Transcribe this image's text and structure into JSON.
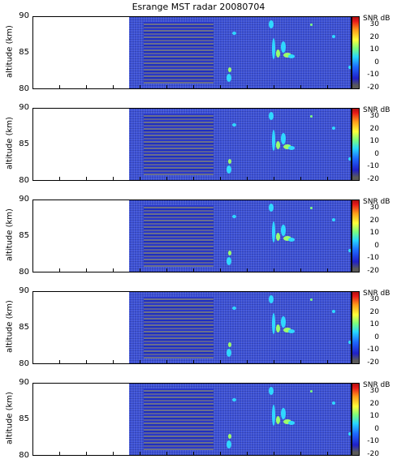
{
  "title": "Esrange MST radar 20080704",
  "ylabel": "altitude (km)",
  "yticks": [
    "90",
    "85",
    "80"
  ],
  "colorbar": {
    "label": "SNR dB",
    "ticks": [
      "30",
      "20",
      "10",
      "0",
      "-10",
      "-20"
    ],
    "colormap": "jet",
    "range": [
      -20,
      30
    ]
  },
  "chart_data": [
    {
      "type": "heatmap",
      "title": "Esrange MST radar 20080704",
      "ylabel": "altitude (km)",
      "ylim": [
        80,
        90
      ],
      "colorbar_label": "SNR dB",
      "clim": [
        -20,
        30
      ]
    },
    {
      "type": "heatmap",
      "ylabel": "altitude (km)",
      "ylim": [
        80,
        90
      ],
      "colorbar_label": "SNR dB",
      "clim": [
        -20,
        30
      ]
    },
    {
      "type": "heatmap",
      "ylabel": "altitude (km)",
      "ylim": [
        80,
        90
      ],
      "colorbar_label": "SNR dB",
      "clim": [
        -20,
        30
      ]
    },
    {
      "type": "heatmap",
      "ylabel": "altitude (km)",
      "ylim": [
        80,
        90
      ],
      "colorbar_label": "SNR dB",
      "clim": [
        -20,
        30
      ]
    },
    {
      "type": "heatmap",
      "ylabel": "altitude (km)",
      "ylim": [
        80,
        90
      ],
      "colorbar_label": "SNR dB",
      "clim": [
        -20,
        30
      ]
    }
  ]
}
